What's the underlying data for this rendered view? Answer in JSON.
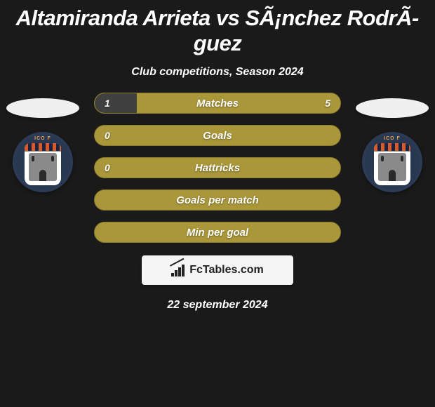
{
  "header": {
    "title": "Altamiranda Arrieta vs SÃ¡nchez RodrÃ­guez",
    "subtitle": "Club competitions, Season 2024"
  },
  "colors": {
    "background": "#1a1a1a",
    "bar_primary": "#aa9739",
    "bar_secondary": "#404040",
    "bar_border": "#8a7a2e",
    "text": "#ffffff"
  },
  "stats": [
    {
      "label": "Matches",
      "left_value": "1",
      "right_value": "5",
      "left_fill_pct": 17,
      "left_color": "#404040",
      "right_fill_pct": 83,
      "right_color": "#aa9739"
    },
    {
      "label": "Goals",
      "left_value": "0",
      "right_value": "",
      "left_fill_pct": 100,
      "left_color": "#aa9739",
      "right_fill_pct": 0,
      "right_color": "#aa9739"
    },
    {
      "label": "Hattricks",
      "left_value": "0",
      "right_value": "",
      "left_fill_pct": 100,
      "left_color": "#aa9739",
      "right_fill_pct": 0,
      "right_color": "#aa9739"
    },
    {
      "label": "Goals per match",
      "left_value": "",
      "right_value": "",
      "left_fill_pct": 100,
      "left_color": "#aa9739",
      "right_fill_pct": 0,
      "right_color": "#aa9739"
    },
    {
      "label": "Min per goal",
      "left_value": "",
      "right_value": "",
      "left_fill_pct": 100,
      "left_color": "#aa9739",
      "right_fill_pct": 0,
      "right_color": "#aa9739"
    }
  ],
  "footer": {
    "brand": "FcTables.com",
    "date": "22 september 2024"
  },
  "badge": {
    "arc_text": "ICO F"
  }
}
